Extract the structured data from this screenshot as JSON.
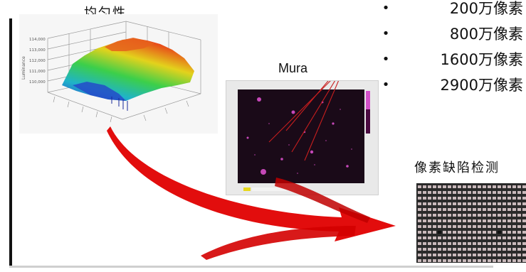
{
  "titles": {
    "uniformity": "均匀性",
    "mura": "Mura",
    "pixel_defect": "像素缺陷检测"
  },
  "resolutions": [
    {
      "label": "200万像素"
    },
    {
      "label": "800万像素"
    },
    {
      "label": "1600万像素"
    },
    {
      "label": "2900万像素"
    }
  ],
  "surface_plot": {
    "zlabel": "Luminance",
    "ticks": [
      "114,000",
      "113,000",
      "112,000",
      "111,000",
      "110,000"
    ]
  },
  "colors": {
    "arrow": "#e00000",
    "mura_bg": "#1a0a18",
    "grid_pixel": "#c9b9bb"
  }
}
